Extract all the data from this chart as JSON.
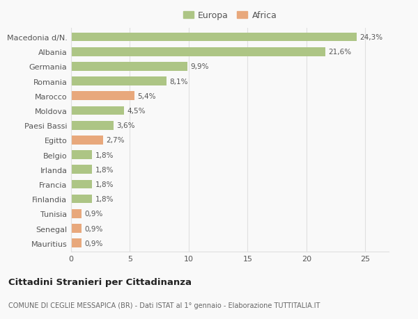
{
  "categories": [
    "Macedonia d/N.",
    "Albania",
    "Germania",
    "Romania",
    "Marocco",
    "Moldova",
    "Paesi Bassi",
    "Egitto",
    "Belgio",
    "Irlanda",
    "Francia",
    "Finlandia",
    "Tunisia",
    "Senegal",
    "Mauritius"
  ],
  "values": [
    24.3,
    21.6,
    9.9,
    8.1,
    5.4,
    4.5,
    3.6,
    2.7,
    1.8,
    1.8,
    1.8,
    1.8,
    0.9,
    0.9,
    0.9
  ],
  "labels": [
    "24,3%",
    "21,6%",
    "9,9%",
    "8,1%",
    "5,4%",
    "4,5%",
    "3,6%",
    "2,7%",
    "1,8%",
    "1,8%",
    "1,8%",
    "1,8%",
    "0,9%",
    "0,9%",
    "0,9%"
  ],
  "continents": [
    "Europa",
    "Europa",
    "Europa",
    "Europa",
    "Africa",
    "Europa",
    "Europa",
    "Africa",
    "Europa",
    "Europa",
    "Europa",
    "Europa",
    "Africa",
    "Africa",
    "Africa"
  ],
  "color_europa": "#adc585",
  "color_africa": "#e8a87c",
  "background_color": "#f9f9f9",
  "grid_color": "#e0e0e0",
  "title": "Cittadini Stranieri per Cittadinanza",
  "subtitle": "COMUNE DI CEGLIE MESSAPICA (BR) - Dati ISTAT al 1° gennaio - Elaborazione TUTTITALIA.IT",
  "legend_europa": "Europa",
  "legend_africa": "Africa",
  "xlim": [
    0,
    27
  ],
  "xlabel_ticks": [
    0,
    5,
    10,
    15,
    20,
    25
  ]
}
